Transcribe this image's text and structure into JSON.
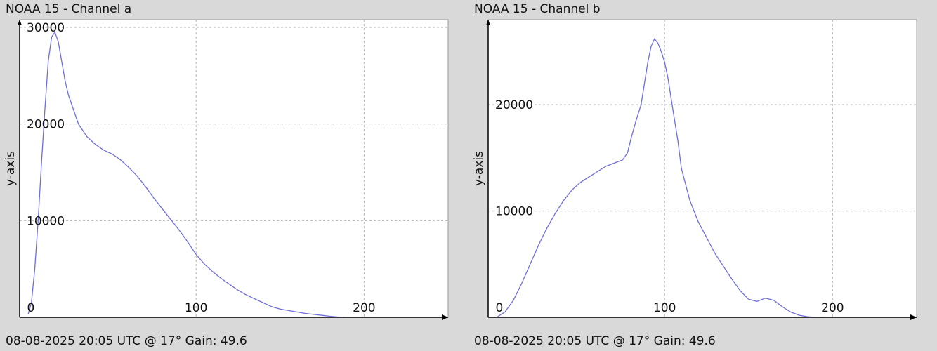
{
  "panels": [
    {
      "title": "NOAA 15 - Channel a",
      "footer": "08-08-2025 20:05 UTC @ 17° Gain: 49.6"
    },
    {
      "title": "NOAA 15 - Channel b",
      "footer": "08-08-2025 20:05 UTC @ 17° Gain: 49.6"
    }
  ],
  "chart_data": [
    {
      "type": "line",
      "title": "NOAA 15 - Channel a",
      "xlabel": "",
      "ylabel": "y-axis",
      "xlim": [
        -5,
        250
      ],
      "ylim": [
        0,
        30800
      ],
      "xticks": [
        0,
        100,
        200
      ],
      "yticks": [
        10000,
        20000,
        30000
      ],
      "grid": true,
      "line_color": "#6f6fd8",
      "series": [
        {
          "x": [
            0,
            2,
            4,
            6,
            8,
            10,
            12,
            14,
            16,
            18,
            20,
            22,
            24,
            26,
            28,
            30,
            35,
            40,
            45,
            50,
            55,
            60,
            65,
            70,
            75,
            80,
            85,
            90,
            95,
            100,
            105,
            110,
            115,
            120,
            125,
            130,
            135,
            140,
            145,
            150,
            155,
            160,
            165,
            170,
            175,
            180,
            185,
            188
          ],
          "y": [
            300,
            1500,
            5000,
            10000,
            16000,
            21500,
            26500,
            29000,
            29500,
            28500,
            26500,
            24500,
            23000,
            22000,
            21000,
            20000,
            18700,
            17900,
            17300,
            16900,
            16300,
            15500,
            14600,
            13500,
            12300,
            11200,
            10100,
            9000,
            7800,
            6500,
            5500,
            4700,
            4000,
            3400,
            2800,
            2300,
            1900,
            1500,
            1100,
            850,
            700,
            550,
            400,
            300,
            200,
            100,
            30,
            0
          ]
        }
      ]
    },
    {
      "type": "line",
      "title": "NOAA 15 - Channel b",
      "xlabel": "",
      "ylabel": "y-axis",
      "xlim": [
        -5,
        250
      ],
      "ylim": [
        0,
        28000
      ],
      "xticks": [
        0,
        100,
        200
      ],
      "yticks": [
        10000,
        20000
      ],
      "grid": true,
      "line_color": "#6f6fd8",
      "series": [
        {
          "x": [
            0,
            5,
            10,
            15,
            20,
            25,
            30,
            35,
            40,
            45,
            50,
            55,
            60,
            65,
            70,
            75,
            78,
            80,
            83,
            86,
            88,
            90,
            92,
            94,
            96,
            98,
            100,
            102,
            104,
            106,
            108,
            110,
            115,
            120,
            125,
            130,
            135,
            140,
            145,
            150,
            155,
            160,
            165,
            170,
            175,
            180,
            185,
            190,
            195
          ],
          "y": [
            0,
            500,
            1600,
            3200,
            5000,
            6800,
            8400,
            9800,
            11000,
            12000,
            12700,
            13200,
            13700,
            14200,
            14500,
            14800,
            15500,
            16800,
            18500,
            20000,
            22000,
            24000,
            25500,
            26200,
            25800,
            25000,
            24000,
            22500,
            20500,
            18500,
            16500,
            14000,
            11000,
            9000,
            7500,
            6000,
            4800,
            3600,
            2500,
            1700,
            1500,
            1800,
            1600,
            1000,
            500,
            200,
            50,
            0,
            0
          ]
        }
      ]
    }
  ]
}
